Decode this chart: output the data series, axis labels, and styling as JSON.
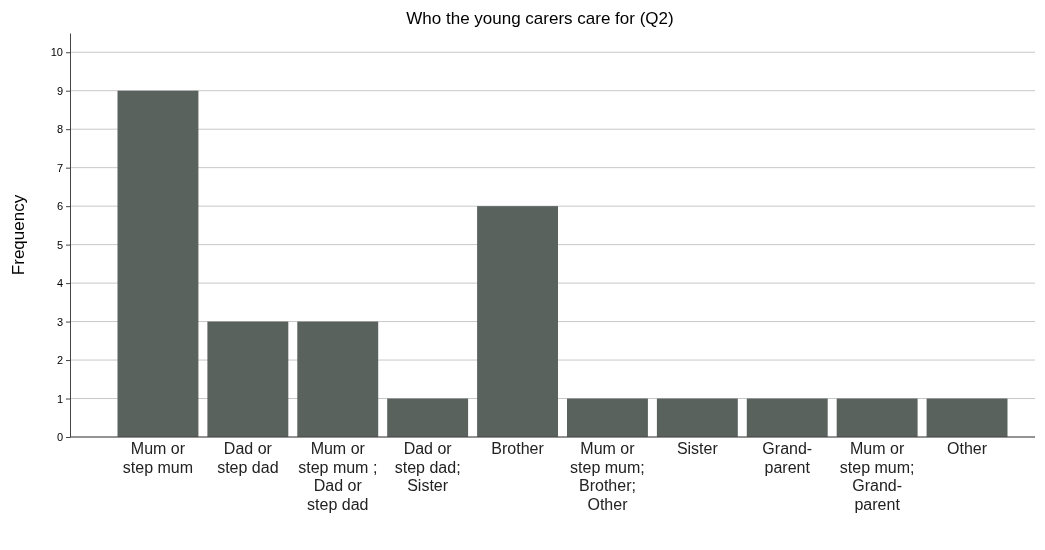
{
  "chart_data": {
    "type": "bar",
    "title": "Who the young carers care for (Q2)",
    "ylabel": "Frequency",
    "categories": [
      "Mum or step mum",
      "Dad or step dad",
      "Mum or step mum ; Dad or step dad",
      "Dad or step dad; Sister",
      "Brother",
      "Mum or step mum; Brother; Other",
      "Sister",
      "Grand-parent",
      "Mum or step mum; Grand-parent",
      "Other"
    ],
    "values": [
      9,
      3,
      3,
      1,
      6,
      1,
      1,
      1,
      1,
      1
    ],
    "color": "#5a625e",
    "ylim": [
      0,
      10.5
    ],
    "yticks": [
      0,
      1,
      2,
      3,
      4,
      5,
      6,
      7,
      8,
      9,
      10
    ],
    "grid": "y"
  }
}
